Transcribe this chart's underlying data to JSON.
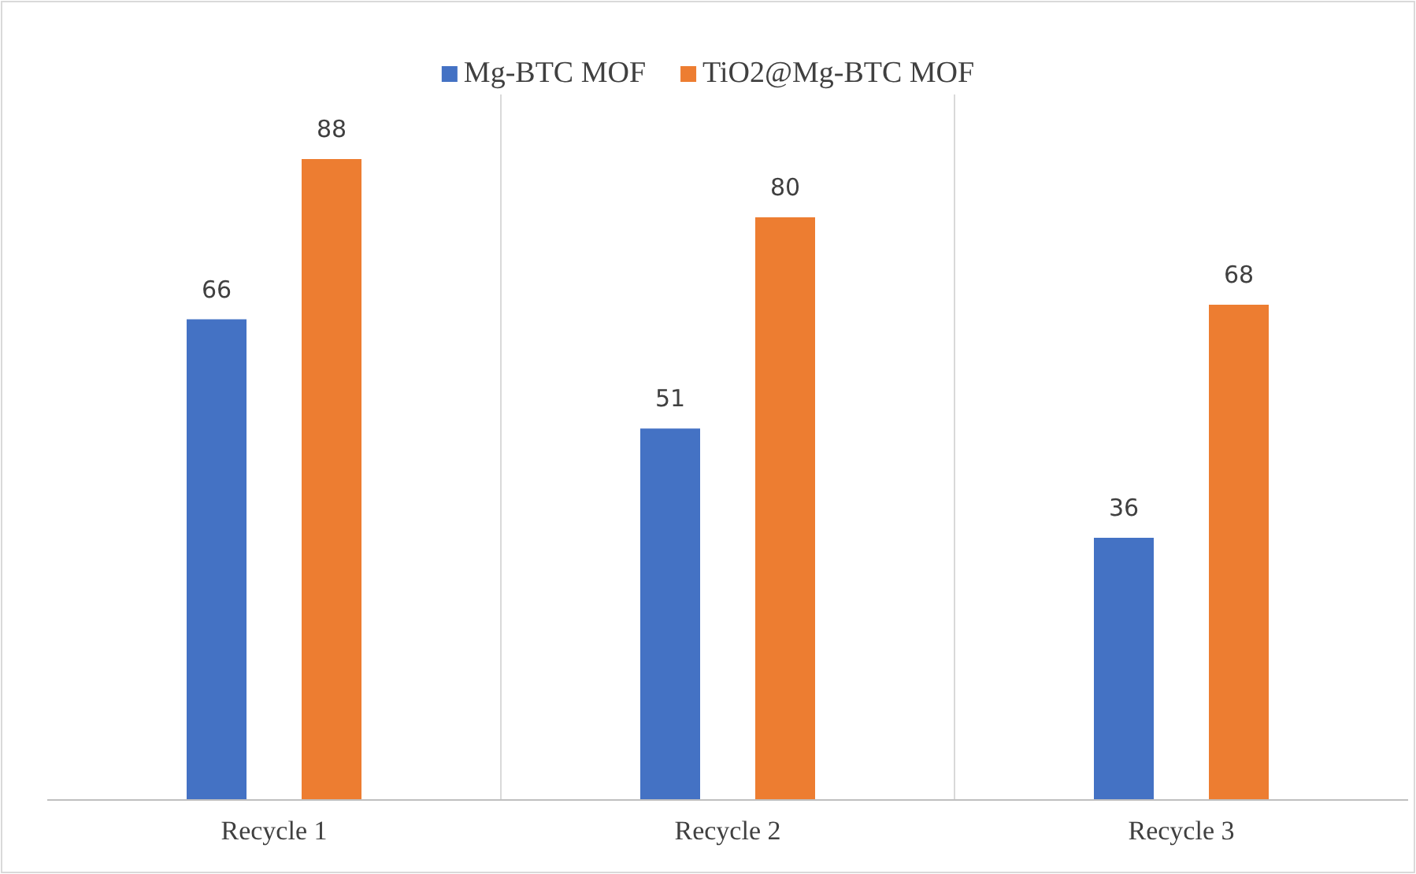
{
  "chart_data": {
    "type": "bar",
    "categories": [
      "Recycle 1",
      "Recycle 2",
      "Recycle 3"
    ],
    "series": [
      {
        "name": "Mg-BTC MOF",
        "color": "#4472c4",
        "values": [
          66,
          51,
          36
        ]
      },
      {
        "name": "TiO2@Mg-BTC MOF",
        "color": "#ed7d31",
        "values": [
          88,
          80,
          68
        ]
      }
    ],
    "relative": false,
    "data_labels": true,
    "grid": "x",
    "legend": "top"
  }
}
